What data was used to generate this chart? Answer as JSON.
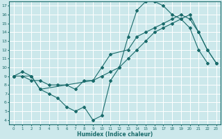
{
  "xlabel": "Humidex (Indice chaleur)",
  "bg_color": "#cce8eb",
  "grid_color": "#ffffff",
  "line_color": "#1a6b6b",
  "xlim": [
    -0.5,
    23.5
  ],
  "ylim": [
    3.5,
    17.5
  ],
  "xticks": [
    0,
    1,
    2,
    3,
    4,
    5,
    6,
    7,
    8,
    9,
    10,
    11,
    12,
    13,
    14,
    15,
    16,
    17,
    18,
    19,
    20,
    21,
    22,
    23
  ],
  "yticks": [
    4,
    5,
    6,
    7,
    8,
    9,
    10,
    11,
    12,
    13,
    14,
    15,
    16,
    17
  ],
  "line1_x": [
    0,
    1,
    2,
    3,
    4,
    5,
    6,
    7,
    8,
    9,
    10,
    11,
    12,
    13,
    14,
    15,
    16,
    17,
    18,
    19,
    20,
    21,
    22
  ],
  "line1_y": [
    9,
    9.5,
    9,
    7.5,
    7,
    6.5,
    5.5,
    5,
    5.5,
    4,
    4.5,
    8.5,
    10,
    13.5,
    16.5,
    17.5,
    17.5,
    17,
    16,
    15.5,
    14.5,
    12,
    10.5
  ],
  "line2_x": [
    0,
    1,
    2,
    3,
    4,
    5,
    6,
    7,
    8,
    9,
    10,
    11,
    12,
    13,
    14,
    15,
    16,
    17,
    18,
    19,
    20,
    21,
    22,
    23
  ],
  "line2_y": [
    9,
    9,
    8.5,
    8.5,
    8,
    8,
    8,
    7.5,
    8.5,
    8.5,
    9,
    9.5,
    10,
    11,
    12,
    13,
    14,
    14.5,
    15,
    15.5,
    16,
    14,
    12,
    10.5
  ],
  "line3_x": [
    0,
    2,
    3,
    9,
    10,
    11,
    13,
    14,
    15,
    16,
    17,
    18,
    19,
    20,
    21,
    22,
    23
  ],
  "line3_y": [
    9,
    9,
    7.5,
    8.5,
    10,
    11.5,
    12,
    13.5,
    14,
    14.5,
    15,
    15.5,
    16,
    15.5,
    14,
    12,
    10.5
  ]
}
